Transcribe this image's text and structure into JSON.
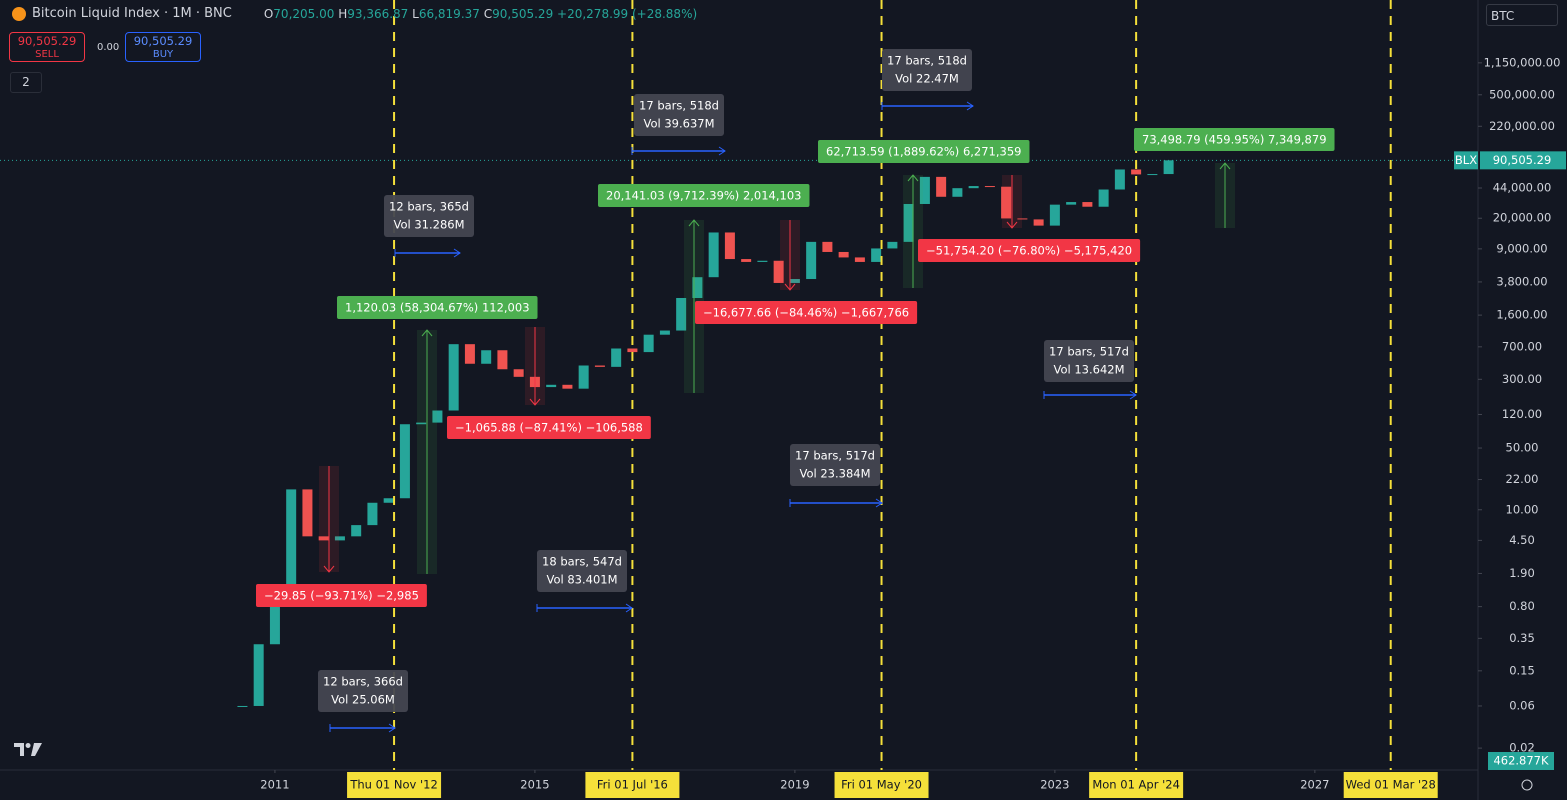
{
  "header": {
    "title": "Bitcoin Liquid Index · 1M · BNC",
    "open_key": "O",
    "open": "70,205.00",
    "high_key": "H",
    "high": "93,366.87",
    "low_key": "L",
    "low": "66,819.37",
    "close_key": "C",
    "close": "90,505.29",
    "change": "+20,278.99 (+28.88%)"
  },
  "trade": {
    "sell_price": "90,505.29",
    "sell": "SELL",
    "spread": "0.00",
    "buy_price": "90,505.29",
    "buy": "BUY"
  },
  "indicators_count": "2",
  "symbol_box": "BTC",
  "chart_data": {
    "type": "candlestick",
    "log_scale": true,
    "up_color": "#26a69a",
    "down_color": "#ef5350",
    "x": [
      2010.5,
      2010.75,
      2011,
      2011.25,
      2011.5,
      2011.75,
      2012,
      2012.25,
      2012.5,
      2012.75,
      2013,
      2013.25,
      2013.5,
      2013.75,
      2014,
      2014.25,
      2014.5,
      2014.75,
      2015,
      2015.25,
      2015.5,
      2015.75,
      2016,
      2016.25,
      2016.5,
      2016.75,
      2017,
      2017.25,
      2017.5,
      2017.75,
      2018,
      2018.25,
      2018.5,
      2018.75,
      2019,
      2019.25,
      2019.5,
      2019.75,
      2020,
      2020.25,
      2020.5,
      2020.75,
      2021,
      2021.25,
      2021.5,
      2021.75,
      2022,
      2022.25,
      2022.5,
      2022.75,
      2023,
      2023.25,
      2023.5,
      2023.75,
      2024,
      2024.25,
      2024.5,
      2024.75
    ],
    "values": [
      0.06,
      0.3,
      0.8,
      17,
      5,
      4.5,
      5,
      6.7,
      12,
      13.5,
      93,
      97,
      133,
      750,
      450,
      640,
      390,
      320,
      245,
      260,
      235,
      430,
      415,
      670,
      610,
      960,
      1070,
      2500,
      4300,
      13800,
      6900,
      6400,
      6600,
      3700,
      4100,
      10800,
      8300,
      7200,
      6400,
      9100,
      10800,
      29000,
      58800,
      35000,
      43800,
      46300,
      45500,
      19900,
      19400,
      16500,
      28500,
      30500,
      27000,
      42300,
      71300,
      62700,
      63300,
      90505.29
    ],
    "xlim": [
      2006.77,
      2029.51
    ],
    "xticks": [
      2011,
      2015,
      2019,
      2023,
      2027
    ],
    "vlines": [
      {
        "value": 2012.833,
        "label": "Thu 01 Nov '12"
      },
      {
        "value": 2016.5,
        "label": "Fri 01 Jul '16"
      },
      {
        "value": 2020.333,
        "label": "Fri 01 May '20"
      },
      {
        "value": 2024.25,
        "label": "Mon 01 Apr '24"
      },
      {
        "value": 2028.167,
        "label": "Wed 01 Mar '28"
      }
    ],
    "ylim": [
      0.0113,
      5920000
    ],
    "yticks": [
      {
        "value": 1150000,
        "label": "1,150,000.00"
      },
      {
        "value": 500000,
        "label": "500,000.00"
      },
      {
        "value": 220000,
        "label": "220,000.00"
      },
      {
        "value": 44000,
        "label": "44,000.00"
      },
      {
        "value": 20000,
        "label": "20,000.00"
      },
      {
        "value": 9000,
        "label": "9,000.00"
      },
      {
        "value": 3800,
        "label": "3,800.00"
      },
      {
        "value": 1600,
        "label": "1,600.00"
      },
      {
        "value": 700,
        "label": "700.00"
      },
      {
        "value": 300,
        "label": "300.00"
      },
      {
        "value": 120,
        "label": "120.00"
      },
      {
        "value": 50,
        "label": "50.00"
      },
      {
        "value": 22,
        "label": "22.00"
      },
      {
        "value": 10,
        "label": "10.00"
      },
      {
        "value": 4.5,
        "label": "4.50"
      },
      {
        "value": 1.9,
        "label": "1.90"
      },
      {
        "value": 0.8,
        "label": "0.80"
      },
      0.35,
      0.15,
      0.06,
      0.02
    ],
    "last_price": {
      "symbol": "BLX",
      "value": 90505.29,
      "label": "90,505.29"
    },
    "volume_label": "462.877K",
    "price_ranges": [
      {
        "label": "1,120.03 (58,304.67%) 112,003",
        "direction": "up"
      },
      {
        "label": "−29.85 (−93.71%) −2,985",
        "direction": "down"
      },
      {
        "label": "20,141.03 (9,712.39%) 2,014,103",
        "direction": "up"
      },
      {
        "label": "−1,065.88 (−87.41%) −106,588",
        "direction": "down"
      },
      {
        "label": "−16,677.66 (−84.46%) −1,667,766",
        "direction": "down"
      },
      {
        "label": "62,713.59 (1,889.62%) 6,271,359",
        "direction": "up"
      },
      {
        "label": "−51,754.20 (−76.80%) −5,175,420",
        "direction": "down"
      },
      {
        "label": "73,498.79 (459.95%) 7,349,879",
        "direction": "up"
      }
    ],
    "date_ranges": [
      {
        "bars": "12 bars, 366d",
        "volume": "Vol 25.06M"
      },
      {
        "bars": "12 bars, 365d",
        "volume": "Vol 31.286M"
      },
      {
        "bars": "18 bars, 547d",
        "volume": "Vol 83.401M"
      },
      {
        "bars": "17 bars, 518d",
        "volume": "Vol 39.637M"
      },
      {
        "bars": "17 bars, 517d",
        "volume": "Vol 23.384M"
      },
      {
        "bars": "17 bars, 518d",
        "volume": "Vol 22.47M"
      },
      {
        "bars": "17 bars, 517d",
        "volume": "Vol 13.642M"
      }
    ]
  }
}
